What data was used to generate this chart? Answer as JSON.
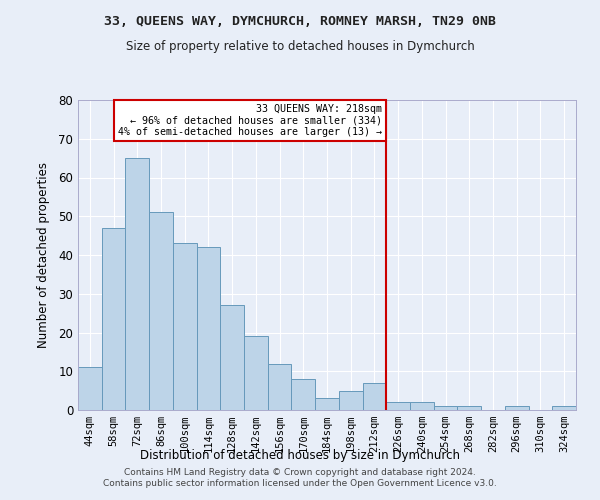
{
  "title": "33, QUEENS WAY, DYMCHURCH, ROMNEY MARSH, TN29 0NB",
  "subtitle": "Size of property relative to detached houses in Dymchurch",
  "xlabel": "Distribution of detached houses by size in Dymchurch",
  "ylabel": "Number of detached properties",
  "categories": [
    "44sqm",
    "58sqm",
    "72sqm",
    "86sqm",
    "100sqm",
    "114sqm",
    "128sqm",
    "142sqm",
    "156sqm",
    "170sqm",
    "184sqm",
    "198sqm",
    "212sqm",
    "226sqm",
    "240sqm",
    "254sqm",
    "268sqm",
    "282sqm",
    "296sqm",
    "310sqm",
    "324sqm"
  ],
  "bar_values": [
    11,
    47,
    65,
    51,
    43,
    42,
    27,
    19,
    12,
    8,
    3,
    5,
    7,
    2,
    2,
    1,
    1,
    0,
    1,
    0,
    1
  ],
  "bar_color": "#bdd4e8",
  "bar_edge_color": "#6699bb",
  "background_color": "#e8eef8",
  "plot_bg_color": "#dde6f0",
  "grid_color": "#ffffff",
  "vline_color": "#cc0000",
  "annotation_text": "33 QUEENS WAY: 218sqm\n← 96% of detached houses are smaller (334)\n4% of semi-detached houses are larger (13) →",
  "annotation_box_color": "#cc0000",
  "footer": "Contains HM Land Registry data © Crown copyright and database right 2024.\nContains public sector information licensed under the Open Government Licence v3.0.",
  "ylim": [
    0,
    80
  ],
  "yticks": [
    0,
    10,
    20,
    30,
    40,
    50,
    60,
    70,
    80
  ]
}
